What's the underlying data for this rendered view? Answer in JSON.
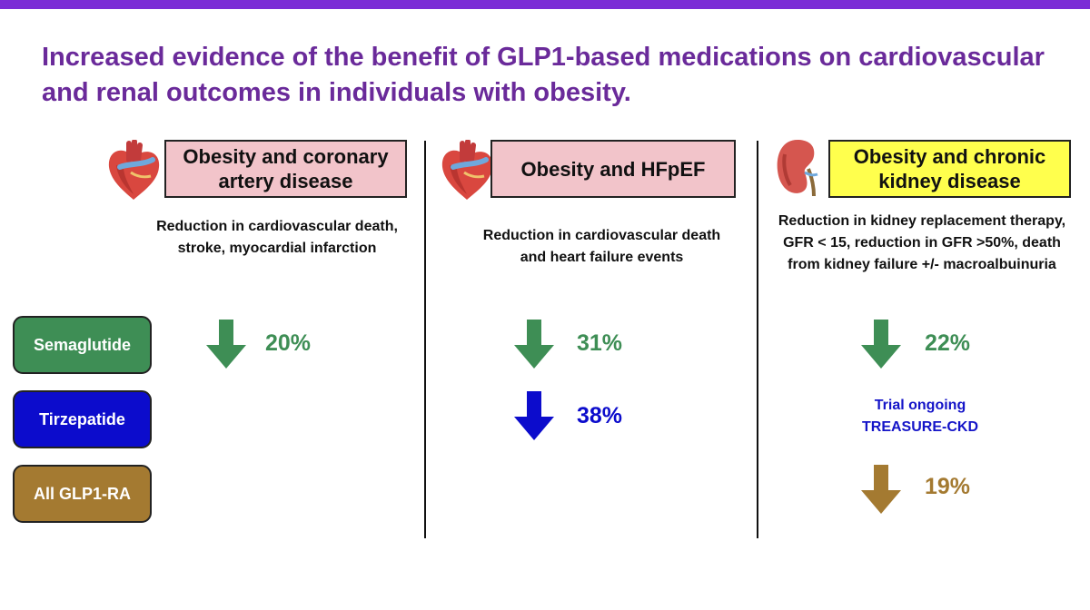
{
  "title": "Increased evidence of the benefit of GLP1-based medications on cardiovascular and renal outcomes in individuals with obesity.",
  "colors": {
    "semaglutide": "#3e8e55",
    "tirzepatide": "#0c0ccc",
    "all_glp1ra": "#a47a31",
    "header_pink": "#f2c4ca",
    "header_yellow": "#ffff4d",
    "title": "#6a2a9a",
    "top_bar": "#7b2bd6"
  },
  "drugs": [
    {
      "label": "Semaglutide"
    },
    {
      "label": "Tirzepatide"
    },
    {
      "label": "All GLP1-RA"
    }
  ],
  "columns": [
    {
      "header": "Obesity and coronary artery disease",
      "icon": "heart-icon",
      "description": "Reduction in cardiovascular death, stroke, myocardial infarction",
      "results": {
        "semaglutide": "20%"
      }
    },
    {
      "header": "Obesity and HFpEF",
      "icon": "heart-icon",
      "description": "Reduction in cardiovascular death and heart failure events",
      "results": {
        "semaglutide": "31%",
        "tirzepatide": "38%"
      }
    },
    {
      "header": "Obesity and chronic kidney disease",
      "icon": "kidney-icon",
      "description": "Reduction in kidney replacement therapy, GFR < 15, reduction in GFR >50%, death from kidney failure +/- macroalbuinuria",
      "results": {
        "semaglutide": "22%",
        "tirzepatide_note_line1": "Trial ongoing",
        "tirzepatide_note_line2": "TREASURE-CKD",
        "all_glp1ra": "19%"
      }
    }
  ]
}
